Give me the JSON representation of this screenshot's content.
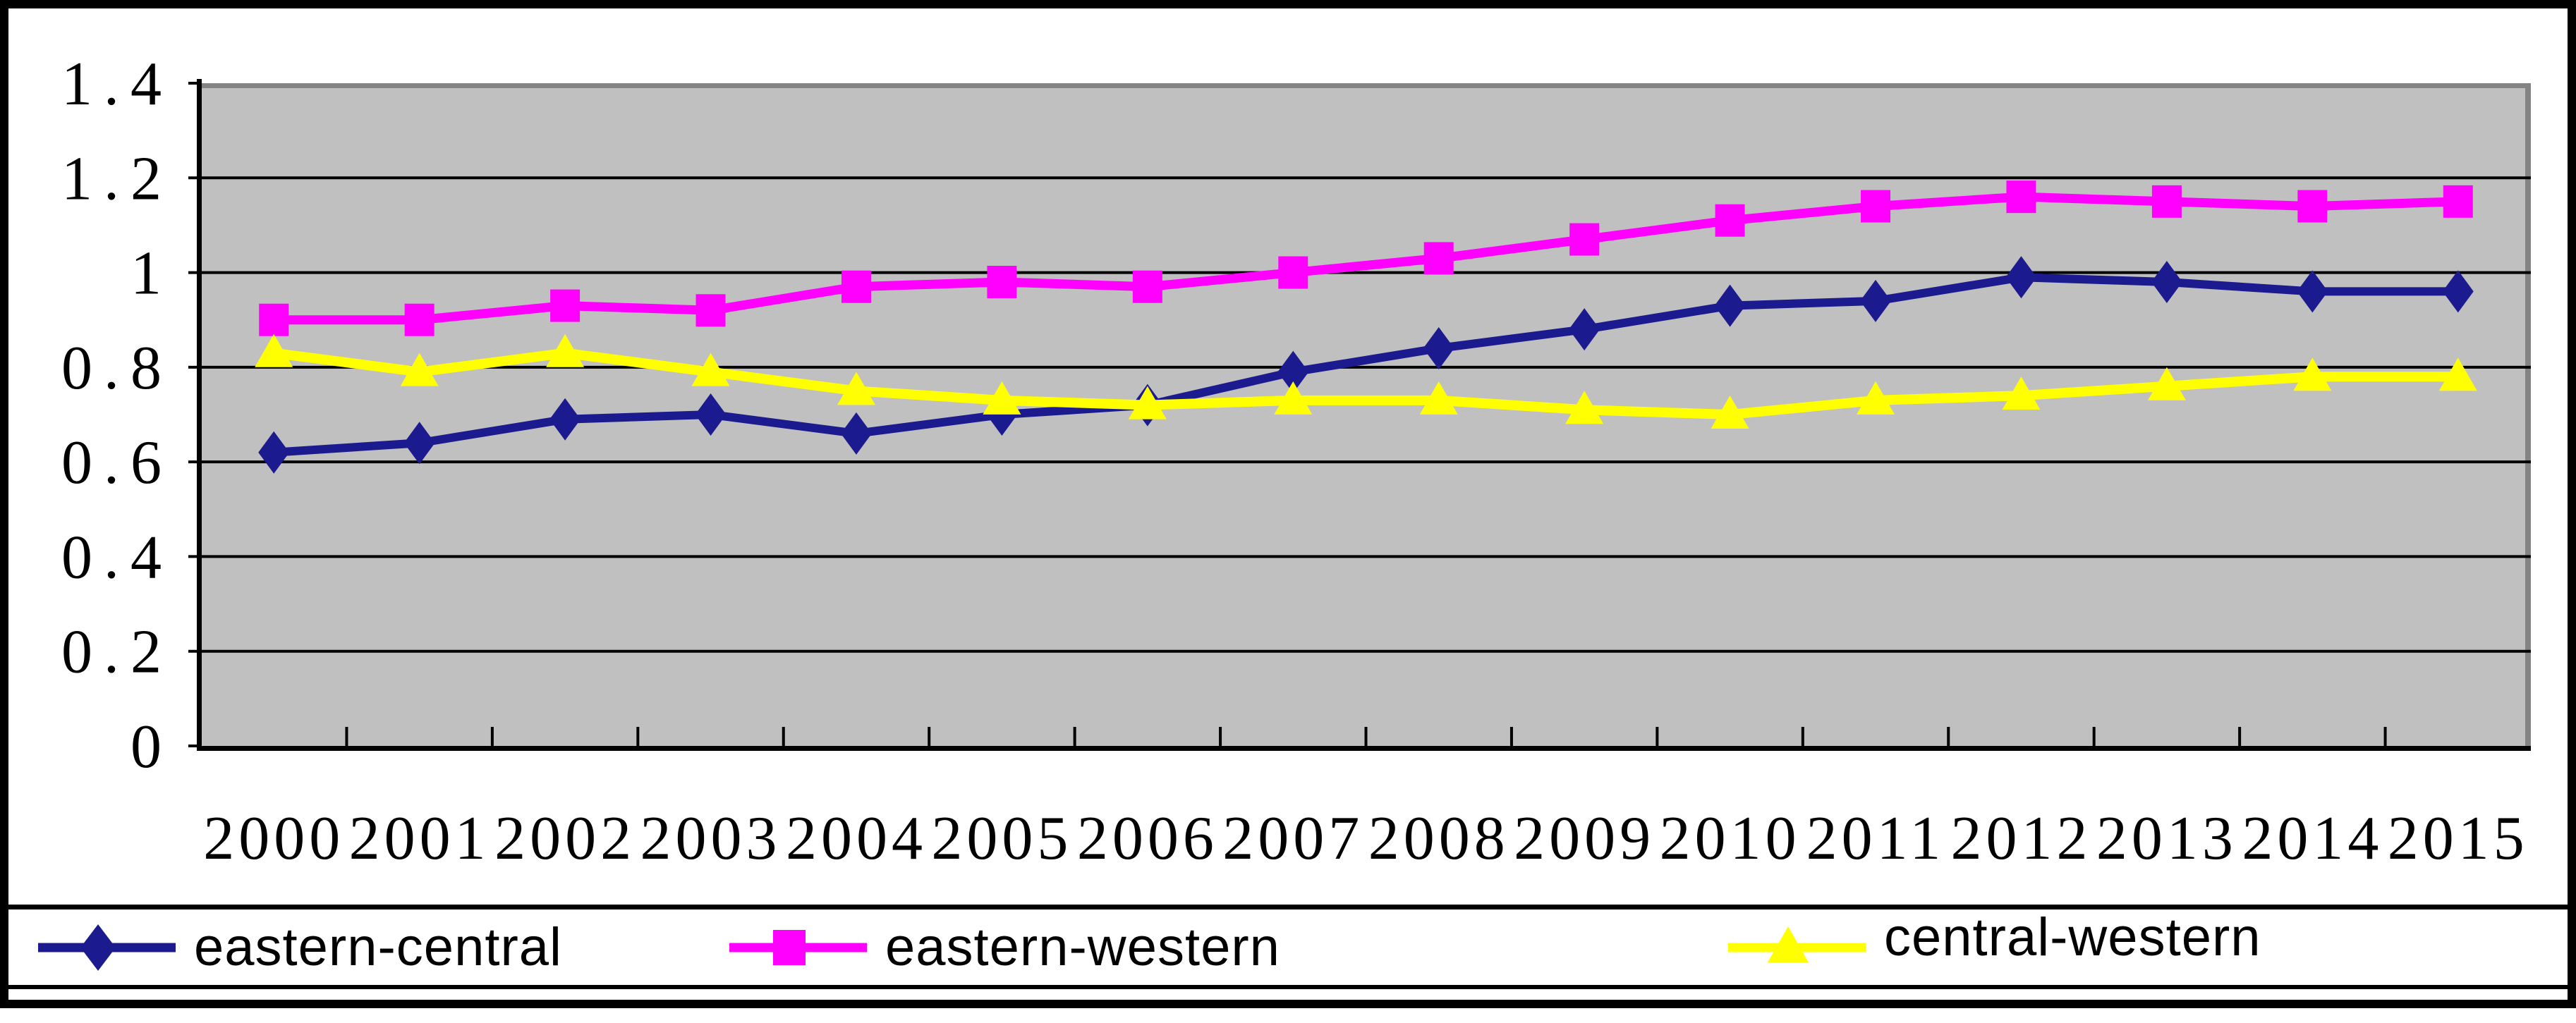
{
  "figure": {
    "background": "#ffffff",
    "border_color": "#000000",
    "plot_background": "#c0c0c0",
    "plot_shadow": "#848484",
    "grid_color": "#000000",
    "text_color": "#000000"
  },
  "chart_data": {
    "type": "line",
    "title": "",
    "xlabel": "",
    "ylabel": "",
    "categories": [
      "2000",
      "2001",
      "2002",
      "2003",
      "2004",
      "2005",
      "2006",
      "2007",
      "2008",
      "2009",
      "2010",
      "2011",
      "2012",
      "2013",
      "2014",
      "2015"
    ],
    "y_ticks": [
      "0",
      "0.2",
      "0.4",
      "0.6",
      "0.8",
      "1",
      "1.2",
      "1.4"
    ],
    "ylim": [
      0,
      1.4
    ],
    "grid": true,
    "plot_bg": "#c0c0c0",
    "legend_position": "bottom",
    "series": [
      {
        "name": "eastern-central",
        "marker": "diamond",
        "color": "#1b1b8f",
        "values": [
          0.62,
          0.64,
          0.69,
          0.7,
          0.66,
          0.7,
          0.72,
          0.79,
          0.84,
          0.88,
          0.93,
          0.94,
          0.99,
          0.98,
          0.96,
          0.96
        ]
      },
      {
        "name": "eastern-western",
        "marker": "square",
        "color": "#ff00ff",
        "values": [
          0.9,
          0.9,
          0.93,
          0.92,
          0.97,
          0.98,
          0.97,
          1.0,
          1.03,
          1.07,
          1.11,
          1.14,
          1.16,
          1.15,
          1.14,
          1.15
        ]
      },
      {
        "name": "central-western",
        "marker": "triangle",
        "color": "#ffff00",
        "values": [
          0.83,
          0.79,
          0.83,
          0.79,
          0.75,
          0.73,
          0.72,
          0.73,
          0.73,
          0.71,
          0.7,
          0.73,
          0.74,
          0.76,
          0.78,
          0.78
        ]
      }
    ]
  }
}
